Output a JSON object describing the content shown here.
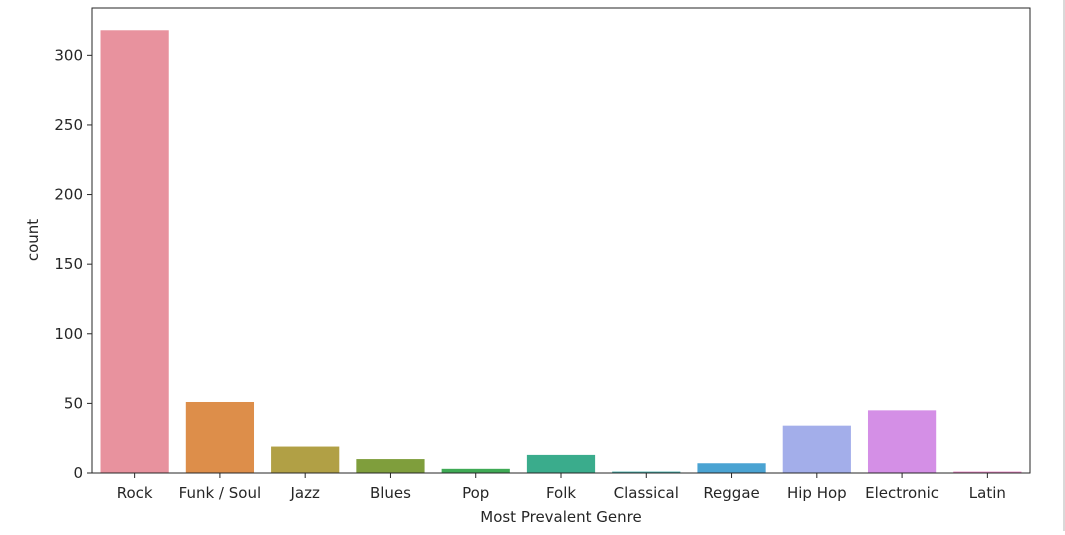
{
  "chart_data": {
    "type": "bar",
    "title": "",
    "xlabel": "Most Prevalent Genre",
    "ylabel": "count",
    "categories": [
      "Rock",
      "Funk / Soul",
      "Jazz",
      "Blues",
      "Pop",
      "Folk",
      "Classical",
      "Reggae",
      "Hip Hop",
      "Electronic",
      "Latin"
    ],
    "values": [
      318,
      51,
      19,
      10,
      3,
      13,
      1,
      7,
      34,
      45,
      1
    ],
    "colors": [
      "#e8929e",
      "#dd8e4a",
      "#b1a045",
      "#7f9e3c",
      "#3faa55",
      "#3aac8c",
      "#3aa7a1",
      "#4aa3d2",
      "#a3aeea",
      "#d48fe6",
      "#e57dbf"
    ],
    "ylim": [
      0,
      334
    ],
    "yticks": [
      0,
      50,
      100,
      150,
      200,
      250,
      300
    ],
    "grid": false,
    "legend": "none"
  }
}
